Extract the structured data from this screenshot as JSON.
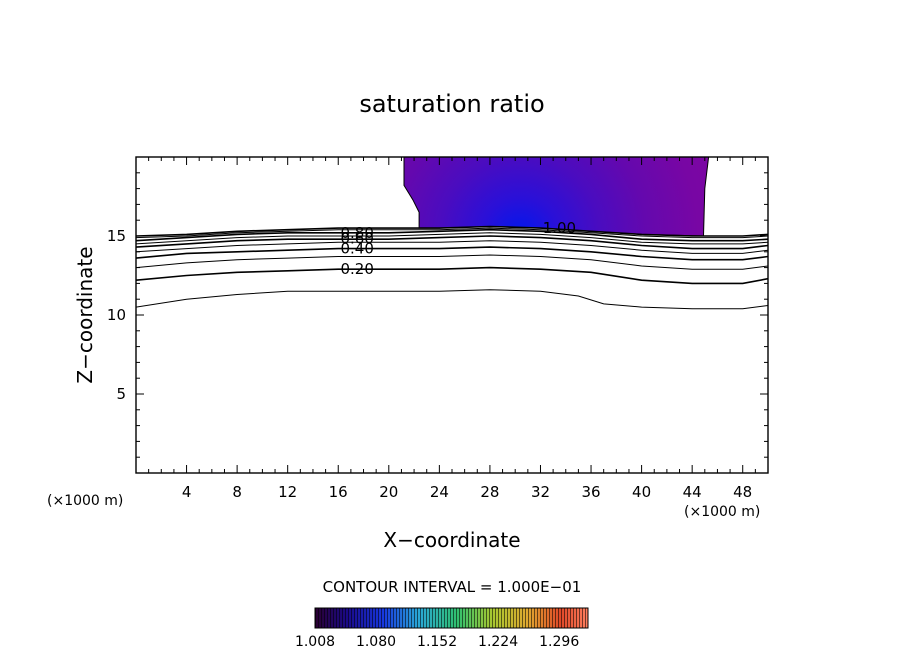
{
  "chart_data": {
    "type": "contour",
    "title": "saturation ratio",
    "xlabel": "X−coordinate",
    "ylabel": "Z−coordinate",
    "x_unit_left": "(×1000 m)",
    "x_unit_right": "(×1000 m)",
    "xlim": [
      0,
      50
    ],
    "ylim": [
      0,
      20
    ],
    "x_ticks": [
      4,
      8,
      12,
      16,
      20,
      24,
      28,
      32,
      36,
      40,
      44,
      48
    ],
    "y_ticks": [
      5,
      10,
      15
    ],
    "contour_interval_text": "CONTOUR INTERVAL = 1.000E−01",
    "contour_lines": [
      {
        "level": 0.1,
        "label": "",
        "points": [
          [
            0,
            10.5
          ],
          [
            4,
            11.0
          ],
          [
            8,
            11.3
          ],
          [
            12,
            11.5
          ],
          [
            16,
            11.5
          ],
          [
            20,
            11.5
          ],
          [
            24,
            11.5
          ],
          [
            28,
            11.6
          ],
          [
            32,
            11.5
          ],
          [
            35,
            11.2
          ],
          [
            37,
            10.7
          ],
          [
            40,
            10.5
          ],
          [
            44,
            10.4
          ],
          [
            48,
            10.4
          ],
          [
            50,
            10.6
          ]
        ]
      },
      {
        "level": 0.2,
        "label": "0.20",
        "points": [
          [
            0,
            12.2
          ],
          [
            4,
            12.5
          ],
          [
            8,
            12.7
          ],
          [
            12,
            12.8
          ],
          [
            16,
            12.9
          ],
          [
            20,
            12.9
          ],
          [
            24,
            12.9
          ],
          [
            28,
            13.0
          ],
          [
            32,
            12.9
          ],
          [
            36,
            12.7
          ],
          [
            40,
            12.2
          ],
          [
            44,
            12.0
          ],
          [
            48,
            12.0
          ],
          [
            50,
            12.3
          ]
        ]
      },
      {
        "level": 0.3,
        "label": "",
        "points": [
          [
            0,
            13.0
          ],
          [
            4,
            13.3
          ],
          [
            8,
            13.5
          ],
          [
            12,
            13.6
          ],
          [
            16,
            13.7
          ],
          [
            20,
            13.7
          ],
          [
            24,
            13.7
          ],
          [
            28,
            13.8
          ],
          [
            32,
            13.7
          ],
          [
            36,
            13.5
          ],
          [
            40,
            13.1
          ],
          [
            44,
            12.9
          ],
          [
            48,
            12.9
          ],
          [
            50,
            13.1
          ]
        ]
      },
      {
        "level": 0.4,
        "label": "0.40",
        "points": [
          [
            0,
            13.6
          ],
          [
            4,
            13.9
          ],
          [
            8,
            14.0
          ],
          [
            12,
            14.1
          ],
          [
            16,
            14.2
          ],
          [
            20,
            14.2
          ],
          [
            24,
            14.2
          ],
          [
            28,
            14.3
          ],
          [
            32,
            14.2
          ],
          [
            36,
            14.0
          ],
          [
            40,
            13.7
          ],
          [
            44,
            13.5
          ],
          [
            48,
            13.5
          ],
          [
            50,
            13.7
          ]
        ]
      },
      {
        "level": 0.5,
        "label": "",
        "points": [
          [
            0,
            14.0
          ],
          [
            4,
            14.2
          ],
          [
            8,
            14.4
          ],
          [
            12,
            14.5
          ],
          [
            16,
            14.6
          ],
          [
            20,
            14.6
          ],
          [
            24,
            14.6
          ],
          [
            28,
            14.7
          ],
          [
            32,
            14.6
          ],
          [
            36,
            14.4
          ],
          [
            40,
            14.1
          ],
          [
            44,
            13.9
          ],
          [
            48,
            13.9
          ],
          [
            50,
            14.1
          ]
        ]
      },
      {
        "level": 0.6,
        "label": "0.60",
        "points": [
          [
            0,
            14.3
          ],
          [
            4,
            14.5
          ],
          [
            8,
            14.7
          ],
          [
            12,
            14.8
          ],
          [
            16,
            14.8
          ],
          [
            20,
            14.8
          ],
          [
            24,
            14.9
          ],
          [
            28,
            15.0
          ],
          [
            32,
            14.9
          ],
          [
            36,
            14.7
          ],
          [
            40,
            14.4
          ],
          [
            44,
            14.2
          ],
          [
            48,
            14.2
          ],
          [
            50,
            14.4
          ]
        ]
      },
      {
        "level": 0.7,
        "label": "",
        "points": [
          [
            0,
            14.5
          ],
          [
            4,
            14.7
          ],
          [
            8,
            14.9
          ],
          [
            12,
            15.0
          ],
          [
            16,
            15.0
          ],
          [
            20,
            15.0
          ],
          [
            24,
            15.1
          ],
          [
            28,
            15.2
          ],
          [
            32,
            15.1
          ],
          [
            36,
            14.9
          ],
          [
            40,
            14.6
          ],
          [
            44,
            14.5
          ],
          [
            48,
            14.5
          ],
          [
            50,
            14.6
          ]
        ]
      },
      {
        "level": 0.8,
        "label": "0.80",
        "points": [
          [
            0,
            14.7
          ],
          [
            4,
            14.9
          ],
          [
            8,
            15.1
          ],
          [
            12,
            15.2
          ],
          [
            16,
            15.2
          ],
          [
            20,
            15.2
          ],
          [
            24,
            15.3
          ],
          [
            28,
            15.4
          ],
          [
            32,
            15.3
          ],
          [
            36,
            15.1
          ],
          [
            40,
            14.8
          ],
          [
            44,
            14.7
          ],
          [
            48,
            14.7
          ],
          [
            50,
            14.8
          ]
        ]
      },
      {
        "level": 0.9,
        "label": "",
        "points": [
          [
            0,
            14.9
          ],
          [
            4,
            15.0
          ],
          [
            8,
            15.2
          ],
          [
            12,
            15.3
          ],
          [
            16,
            15.4
          ],
          [
            20,
            15.4
          ],
          [
            24,
            15.4
          ],
          [
            28,
            15.5
          ],
          [
            32,
            15.4
          ],
          [
            36,
            15.2
          ],
          [
            40,
            15.0
          ],
          [
            44,
            14.9
          ],
          [
            48,
            14.9
          ],
          [
            50,
            15.0
          ]
        ]
      },
      {
        "level": 1.0,
        "label": "1.00",
        "points": [
          [
            0,
            15.0
          ],
          [
            4,
            15.1
          ],
          [
            8,
            15.3
          ],
          [
            12,
            15.4
          ],
          [
            16,
            15.5
          ],
          [
            20,
            15.5
          ],
          [
            24,
            15.5
          ],
          [
            28,
            15.6
          ],
          [
            32,
            15.5
          ],
          [
            36,
            15.3
          ],
          [
            40,
            15.1
          ],
          [
            44,
            15.0
          ],
          [
            48,
            15.0
          ],
          [
            50,
            15.1
          ]
        ]
      }
    ],
    "label_positions": [
      {
        "label": "0.80",
        "x": 17.5,
        "y": 15.2
      },
      {
        "label": "0.60",
        "x": 17.5,
        "y": 14.85
      },
      {
        "label": "0.40",
        "x": 17.5,
        "y": 14.2
      },
      {
        "label": "0.20",
        "x": 17.5,
        "y": 12.9
      },
      {
        "label": "1.00",
        "x": 33.5,
        "y": 15.5
      }
    ],
    "filled_region": {
      "min_value": 1.008,
      "boundary": [
        [
          21.2,
          20
        ],
        [
          45.3,
          20
        ],
        [
          45.0,
          18.0
        ],
        [
          44.9,
          15.0
        ],
        [
          40,
          15.1
        ],
        [
          36,
          15.3
        ],
        [
          32,
          15.5
        ],
        [
          28,
          15.6
        ],
        [
          24,
          15.5
        ],
        [
          22.4,
          15.5
        ],
        [
          22.4,
          16.5
        ],
        [
          21.9,
          17.3
        ],
        [
          21.2,
          18.2
        ],
        [
          21.2,
          20
        ]
      ],
      "core_center": [
        31,
        15.3
      ]
    },
    "colorbar": {
      "tick_values": [
        "1.008",
        "1.080",
        "1.152",
        "1.224",
        "1.296"
      ],
      "vmin": 1.008,
      "vmax": 1.33
    }
  }
}
